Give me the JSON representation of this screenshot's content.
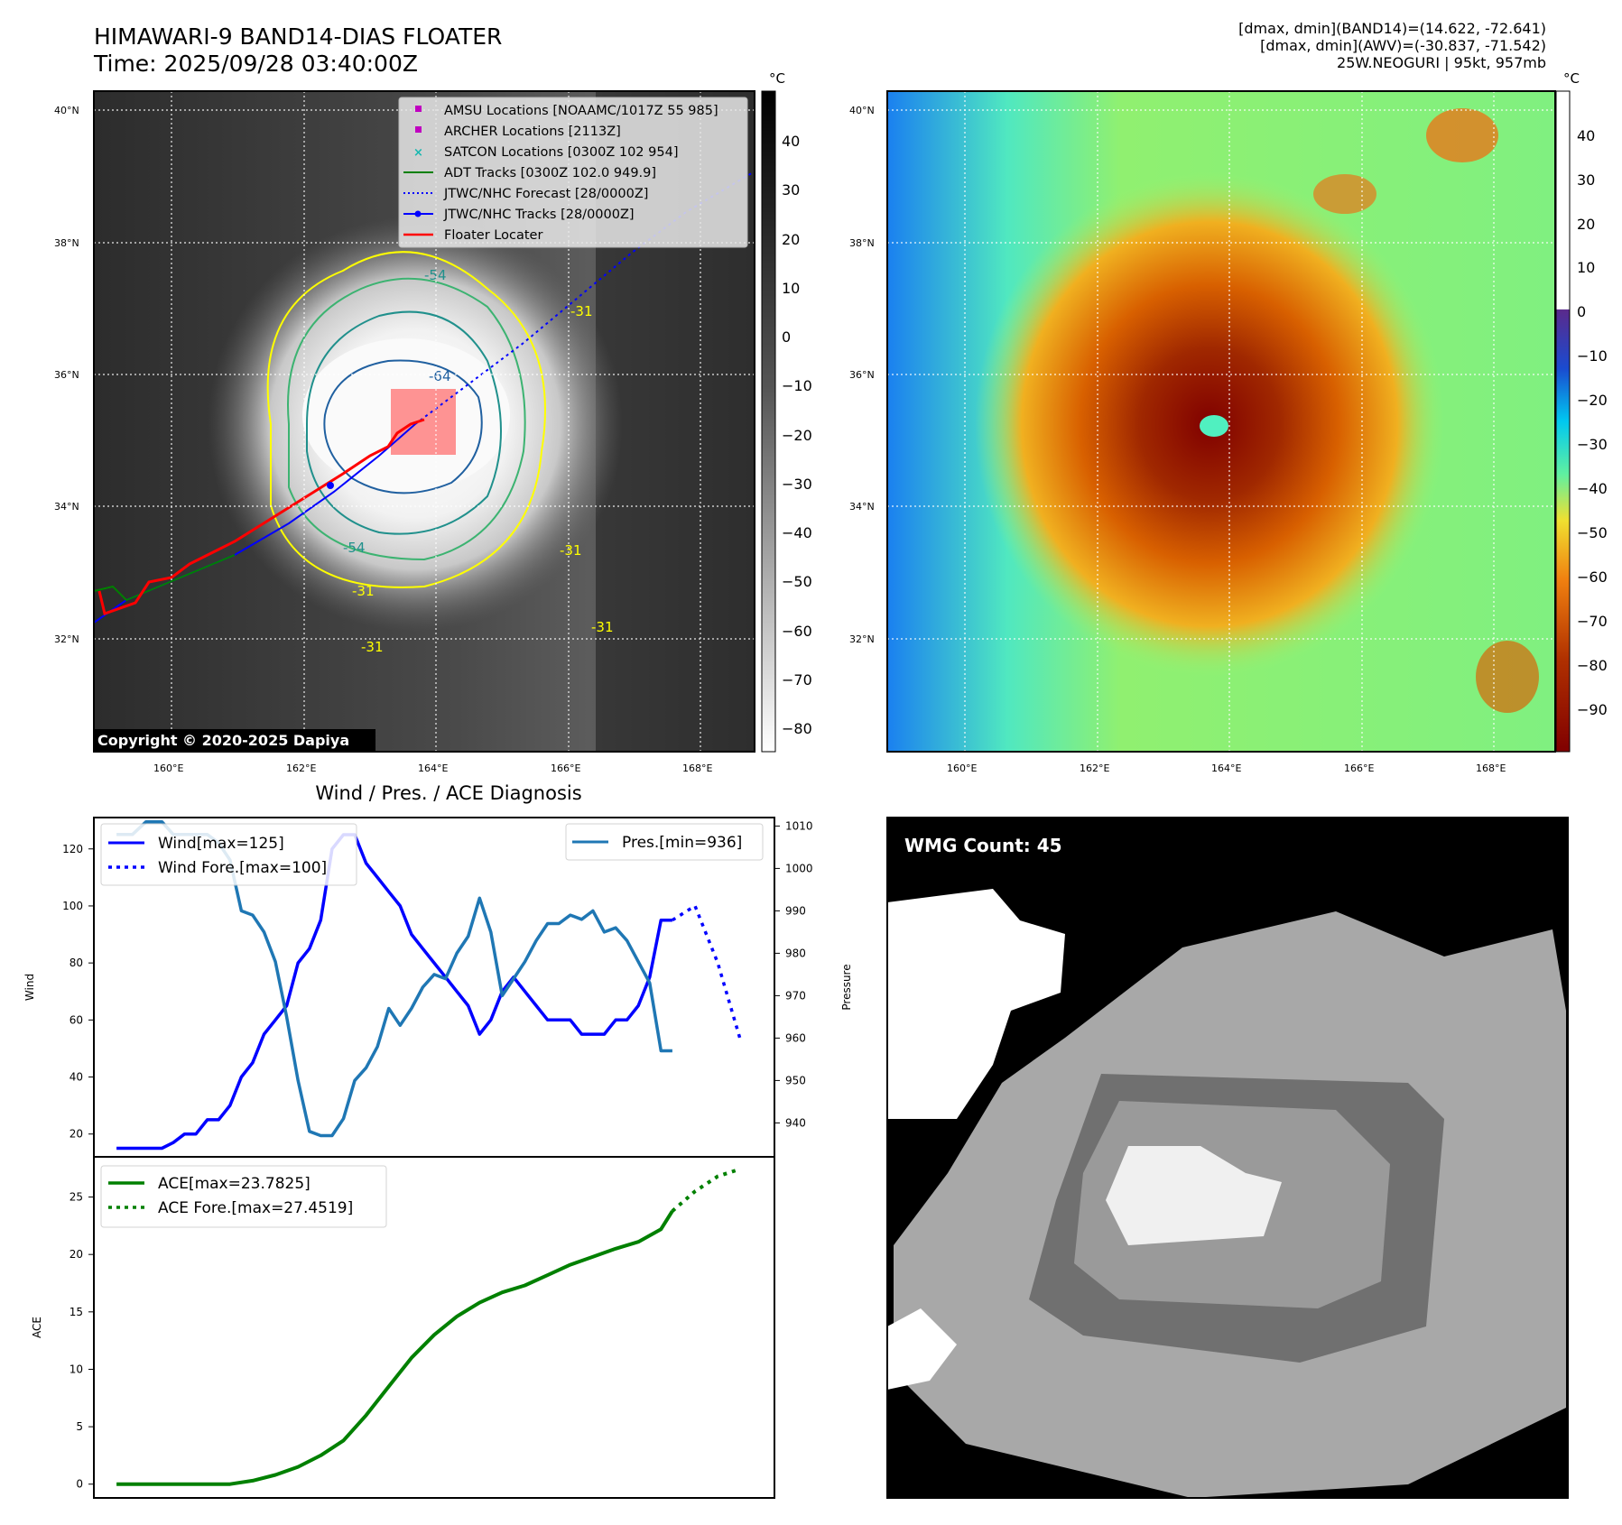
{
  "header": {
    "title_line1": "HIMAWARI-9 BAND14-DIAS FLOATER",
    "title_line2": "Time: 2025/09/28 03:40:00Z",
    "stats_line1": "[dmax, dmin](BAND14)=(14.622, -72.641)",
    "stats_line2": "[dmax, dmin](AWV)=(-30.837, -71.542)",
    "stats_line3": "25W.NEOGURI | 95kt, 957mb"
  },
  "map": {
    "lat_labels": [
      "40°N",
      "38°N",
      "36°N",
      "34°N",
      "32°N"
    ],
    "lon_labels": [
      "160°E",
      "162°E",
      "164°E",
      "166°E",
      "168°E"
    ],
    "copyright": "Copyright © 2020-2025 Dapiya",
    "contour_labels": [
      "-54",
      "-64",
      "-31",
      "-54",
      "-31",
      "-31",
      "-31",
      "-31"
    ],
    "legend": [
      {
        "label": "AMSU Locations [NOAAMC/1017Z 55 985]",
        "color": "#c000c0",
        "marker": "square"
      },
      {
        "label": "ARCHER Locations [2113Z]",
        "color": "#c000c0",
        "marker": "square"
      },
      {
        "label": "SATCON Locations [0300Z 102 954]",
        "color": "#17b8b0",
        "marker": "x"
      },
      {
        "label": "ADT Tracks [0300Z 102.0 949.9]",
        "color": "#008000",
        "marker": "line"
      },
      {
        "label": "JTWC/NHC Forecast [28/0000Z]",
        "color": "#0000ff",
        "marker": "dotted"
      },
      {
        "label": "JTWC/NHC Tracks [28/0000Z]",
        "color": "#0000ff",
        "marker": "line-dot"
      },
      {
        "label": "Floater Locater",
        "color": "#ff0000",
        "marker": "line"
      }
    ]
  },
  "colorbars": {
    "unit": "°C",
    "ir_ticks": [
      "40",
      "30",
      "20",
      "10",
      "0",
      "−10",
      "−20",
      "−30",
      "−40",
      "−50",
      "−60",
      "−70",
      "−80"
    ],
    "awv_ticks": [
      "40",
      "30",
      "20",
      "10",
      "0",
      "−10",
      "−20",
      "−30",
      "−40",
      "−50",
      "−60",
      "−70",
      "−80",
      "−90"
    ]
  },
  "wmg": {
    "label": "WMG Count: 45"
  },
  "colors": {
    "wind": "#0000ff",
    "pres": "#1f77b4",
    "ace": "#008000",
    "contour_yellow": "#ffff00",
    "contour_green": "#3cb371",
    "contour_teal": "#20908c",
    "contour_blue": "#2060a0"
  },
  "chart_data": [
    {
      "type": "line",
      "title": "Wind / Pres. / ACE Diagnosis",
      "ylabel": "Wind",
      "y2label": "Pressure",
      "ylim": [
        12,
        131
      ],
      "y2lim": [
        932,
        1012
      ],
      "yticks": [
        20,
        40,
        60,
        80,
        100,
        120
      ],
      "y2ticks": [
        940,
        950,
        960,
        970,
        980,
        990,
        1000,
        1010
      ],
      "xlim": [
        -1,
        29
      ],
      "series": [
        {
          "name": "Wind[max=125]",
          "style": "solid",
          "axis": "left",
          "x": [
            0,
            1,
            2,
            2.5,
            3,
            3.5,
            4,
            4.5,
            5,
            5.5,
            6,
            6.5,
            7,
            7.5,
            8,
            8.5,
            9,
            9.5,
            10,
            10.5,
            11,
            11.5,
            12,
            12.5,
            13,
            13.5,
            14,
            14.5,
            15,
            15.5,
            16,
            16.5,
            17,
            17.5,
            18,
            18.5,
            19,
            19.5,
            20,
            20.5,
            21,
            21.5,
            22,
            22.5,
            23,
            23.5,
            24,
            24.5
          ],
          "values": [
            15,
            15,
            15,
            17,
            20,
            20,
            25,
            25,
            30,
            40,
            45,
            55,
            60,
            65,
            80,
            85,
            95,
            120,
            125,
            125,
            115,
            110,
            105,
            100,
            90,
            85,
            80,
            75,
            70,
            65,
            55,
            60,
            70,
            75,
            70,
            65,
            60,
            60,
            60,
            55,
            55,
            55,
            60,
            60,
            65,
            75,
            95,
            95
          ]
        },
        {
          "name": "Wind Fore.[max=100]",
          "style": "dotted",
          "axis": "left",
          "x": [
            24.5,
            25.5,
            26.5,
            27.5
          ],
          "values": [
            95,
            100,
            80,
            53
          ]
        },
        {
          "name": "Pres.[min=936]",
          "style": "solid",
          "axis": "right",
          "x": [
            0,
            0.7,
            1.3,
            2,
            2.5,
            3,
            3.5,
            4,
            4.5,
            5,
            5.5,
            6,
            6.5,
            7,
            7.5,
            8,
            8.5,
            9,
            9.5,
            10,
            10.5,
            11,
            11.5,
            12,
            12.5,
            13,
            13.5,
            14,
            14.5,
            15,
            15.5,
            16,
            16.5,
            17,
            17.5,
            18,
            18.5,
            19,
            19.5,
            20,
            20.5,
            21,
            21.5,
            22,
            22.5,
            23,
            23.5,
            24,
            24.5
          ],
          "values": [
            1008,
            1008,
            1011,
            1011,
            1008,
            1008,
            1008,
            1008,
            1006,
            1002,
            990,
            989,
            985,
            978,
            965,
            950,
            938,
            937,
            937,
            941,
            950,
            953,
            958,
            967,
            963,
            967,
            972,
            975,
            974,
            980,
            984,
            993,
            985,
            970,
            974,
            978,
            983,
            987,
            987,
            989,
            988,
            990,
            985,
            986,
            983,
            978,
            973,
            957,
            957
          ]
        },
        {
          "name": "ACE[max=23.7825]",
          "style": "solid",
          "axis": "ace",
          "x": [
            0,
            1,
            2,
            3,
            4,
            5,
            6,
            7,
            8,
            9,
            10,
            11,
            12,
            13,
            14,
            15,
            16,
            17,
            18,
            19,
            20,
            21,
            22,
            23,
            24,
            24.5
          ],
          "values": [
            0,
            0,
            0,
            0,
            0,
            0,
            0.3,
            0.8,
            1.5,
            2.5,
            3.8,
            6.0,
            8.5,
            11.0,
            13.0,
            14.6,
            15.8,
            16.7,
            17.3,
            18.2,
            19.1,
            19.8,
            20.5,
            21.1,
            22.2,
            23.78
          ]
        },
        {
          "name": "ACE Fore.[max=27.4519]",
          "style": "dotted",
          "axis": "ace",
          "x": [
            24.5,
            25.5,
            26.5,
            27.5
          ],
          "values": [
            23.78,
            25.5,
            26.8,
            27.45
          ]
        }
      ],
      "ace_ylabel": "ACE",
      "ace_ylim": [
        -1.2,
        28.5
      ],
      "ace_yticks": [
        0,
        5,
        10,
        15,
        20,
        25
      ]
    }
  ]
}
